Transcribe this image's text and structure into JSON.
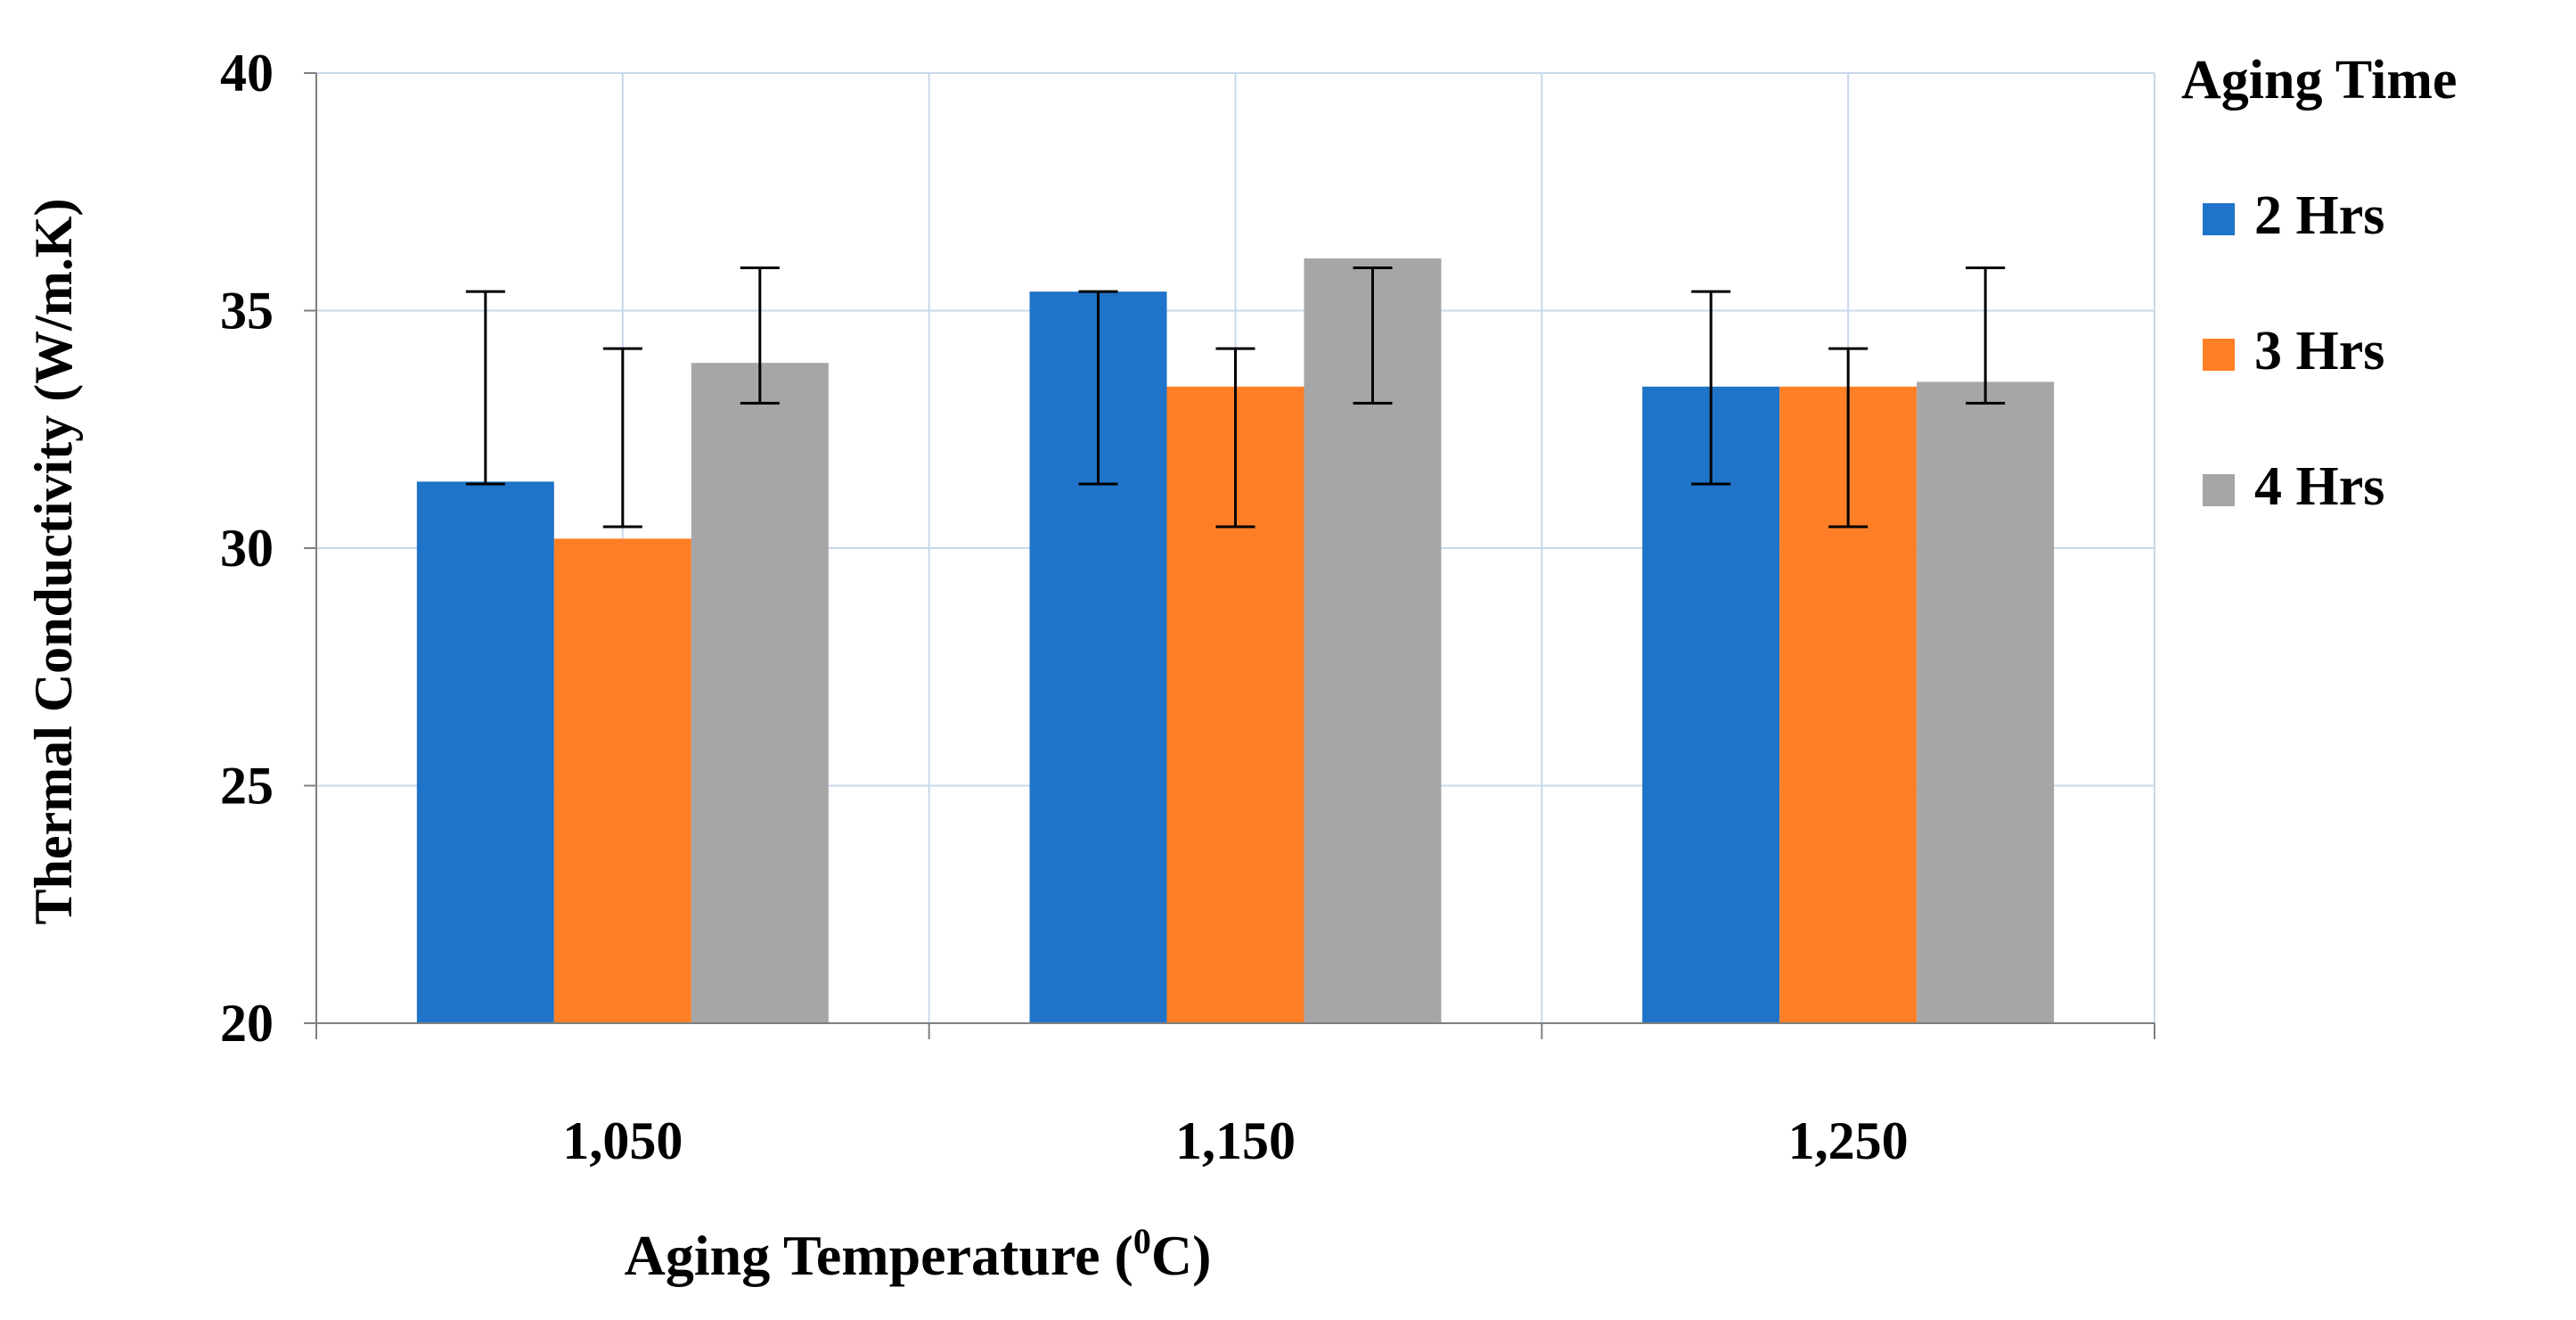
{
  "chart_data": {
    "type": "bar",
    "title": "",
    "xlabel": "Aging Temperature (",
    "xlabel_sup": "0",
    "xlabel_suffix": "C)",
    "ylabel": "Thermal Conductivity (W/m.K)",
    "ylim": [
      20,
      40
    ],
    "yticks": [
      "20",
      "25",
      "30",
      "35",
      "40"
    ],
    "categories": [
      "1,050",
      "1,150",
      "1,250"
    ],
    "legend_title": "Aging Time",
    "legend_position": "right",
    "grid": true,
    "series": [
      {
        "name": "2 Hrs",
        "color": "#1f73c8",
        "values": [
          31.4,
          35.4,
          33.4
        ],
        "err_low": [
          31.35,
          31.35,
          31.35
        ],
        "err_high": [
          35.4,
          35.4,
          35.4
        ]
      },
      {
        "name": "3 Hrs",
        "color": "#ff7f27",
        "values": [
          30.2,
          33.4,
          33.4
        ],
        "err_low": [
          30.45,
          30.45,
          30.45
        ],
        "err_high": [
          34.2,
          34.2,
          34.2
        ]
      },
      {
        "name": "4 Hrs",
        "color": "#a6a6a6",
        "values": [
          33.9,
          36.1,
          33.5
        ],
        "err_low": [
          33.05,
          33.05,
          33.05
        ],
        "err_high": [
          35.9,
          35.9,
          35.9
        ]
      }
    ]
  }
}
